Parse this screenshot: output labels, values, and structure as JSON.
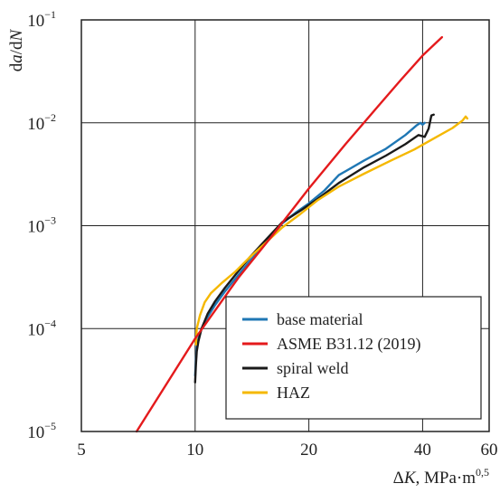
{
  "chart_data": {
    "type": "line",
    "xscale": "log",
    "yscale": "log",
    "xlim": [
      5,
      60
    ],
    "ylim": [
      1e-05,
      0.1
    ],
    "grid": true,
    "legend_position": "lower-right",
    "xlabel": {
      "pre": "Δ",
      "var": "K",
      "unit": ", MPa·m",
      "exp": "0,5"
    },
    "ylabel": {
      "d1": "d",
      "v1": "a",
      "mid": "/d",
      "v2": "N"
    },
    "x_ticks": [
      {
        "value": 5,
        "label": "5"
      },
      {
        "value": 10,
        "label": "10"
      },
      {
        "value": 20,
        "label": "20"
      },
      {
        "value": 40,
        "label": "40"
      },
      {
        "value": 60,
        "label": "60"
      }
    ],
    "y_ticks": [
      {
        "value": 1e-05,
        "base": "10",
        "exp": "−5"
      },
      {
        "value": 0.0001,
        "base": "10",
        "exp": "−4"
      },
      {
        "value": 0.001,
        "base": "10",
        "exp": "−3"
      },
      {
        "value": 0.01,
        "base": "10",
        "exp": "−2"
      },
      {
        "value": 0.1,
        "base": "10",
        "exp": "−1"
      }
    ],
    "series": [
      {
        "name": "base material",
        "color": "#1f77b4",
        "points": [
          [
            10.0,
            3.5e-05
          ],
          [
            10.05,
            5e-05
          ],
          [
            10.1,
            6.5e-05
          ],
          [
            10.2,
            8e-05
          ],
          [
            10.4,
            0.0001
          ],
          [
            10.8,
            0.00013
          ],
          [
            11.3,
            0.00017
          ],
          [
            12.0,
            0.00023
          ],
          [
            13.0,
            0.00033
          ],
          [
            14.0,
            0.00046
          ],
          [
            15.5,
            0.0007
          ],
          [
            17.0,
            0.00105
          ],
          [
            18.5,
            0.00135
          ],
          [
            20.0,
            0.00165
          ],
          [
            22.0,
            0.0022
          ],
          [
            24.0,
            0.0031
          ],
          [
            28.0,
            0.0043
          ],
          [
            32.0,
            0.0056
          ],
          [
            36.0,
            0.0076
          ],
          [
            38.5,
            0.0094
          ],
          [
            39.5,
            0.01
          ],
          [
            40.0,
            0.0096
          ],
          [
            40.5,
            0.01
          ]
        ]
      },
      {
        "name": "ASME B31.12 (2019)",
        "color": "#e41a1c",
        "points": [
          [
            7.0,
            1e-05
          ],
          [
            10.0,
            8e-05
          ],
          [
            13.0,
            0.00031
          ],
          [
            16.0,
            0.0008
          ],
          [
            20.0,
            0.0023
          ],
          [
            25.0,
            0.0062
          ],
          [
            30.0,
            0.0135
          ],
          [
            35.0,
            0.026
          ],
          [
            40.0,
            0.045
          ],
          [
            45.0,
            0.068
          ]
        ]
      },
      {
        "name": "spiral weld",
        "color": "#1a1a1a",
        "points": [
          [
            10.0,
            3e-05
          ],
          [
            10.05,
            4.5e-05
          ],
          [
            10.1,
            6e-05
          ],
          [
            10.2,
            7.5e-05
          ],
          [
            10.4,
            0.0001
          ],
          [
            10.8,
            0.00014
          ],
          [
            11.3,
            0.000185
          ],
          [
            12.0,
            0.00025
          ],
          [
            13.0,
            0.00036
          ],
          [
            14.0,
            0.0005
          ],
          [
            15.5,
            0.00075
          ],
          [
            17.0,
            0.00108
          ],
          [
            19.0,
            0.0014
          ],
          [
            21.0,
            0.0018
          ],
          [
            24.0,
            0.0026
          ],
          [
            28.0,
            0.0037
          ],
          [
            32.0,
            0.0048
          ],
          [
            36.0,
            0.0062
          ],
          [
            39.0,
            0.0076
          ],
          [
            40.5,
            0.0073
          ],
          [
            41.5,
            0.0088
          ],
          [
            42.2,
            0.0118
          ],
          [
            42.8,
            0.012
          ]
        ]
      },
      {
        "name": "HAZ",
        "color": "#f5b800",
        "points": [
          [
            10.05,
            7e-05
          ],
          [
            10.1,
            0.0001
          ],
          [
            10.3,
            0.000135
          ],
          [
            10.6,
            0.00018
          ],
          [
            11.0,
            0.00022
          ],
          [
            11.8,
            0.00028
          ],
          [
            12.8,
            0.00036
          ],
          [
            14.0,
            0.0005
          ],
          [
            15.5,
            0.0007
          ],
          [
            17.0,
            0.00096
          ],
          [
            19.0,
            0.0013
          ],
          [
            21.0,
            0.00175
          ],
          [
            24.0,
            0.0024
          ],
          [
            28.0,
            0.0032
          ],
          [
            33.0,
            0.0043
          ],
          [
            38.0,
            0.0055
          ],
          [
            43.0,
            0.0071
          ],
          [
            48.0,
            0.0089
          ],
          [
            51.0,
            0.0105
          ],
          [
            52.0,
            0.0115
          ],
          [
            52.5,
            0.011
          ]
        ]
      }
    ]
  }
}
